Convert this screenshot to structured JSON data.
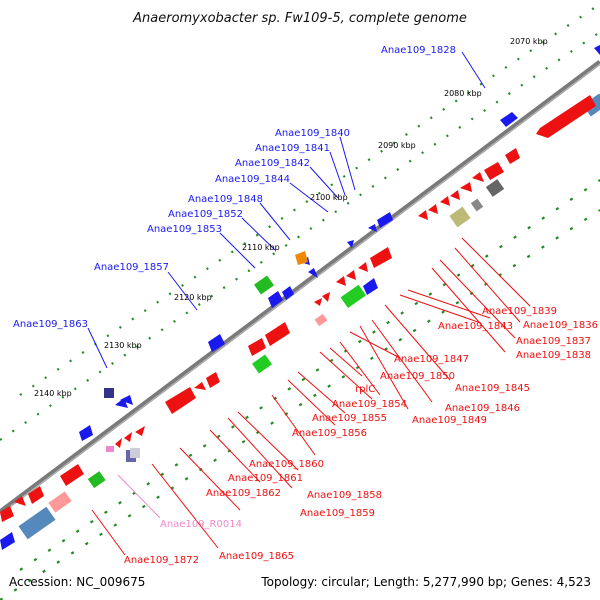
{
  "title": "Anaeromyxobacter sp. Fw109-5, complete genome",
  "accession": "Accession: NC_009675",
  "topology": "Topology: circular; Length: 5,277,990 bp; Genes: 4,523",
  "colors": {
    "forward": "#0000ee",
    "reverse": "#ee0000",
    "rna": "#ee88cc",
    "backbone": "#777777",
    "tick_dots": "#228b22"
  },
  "ticks": [
    "2070 kbp",
    "2080 kbp",
    "2090 kbp",
    "2100 kbp",
    "2110 kbp",
    "2120 kbp",
    "2130 kbp",
    "2140 kbp"
  ],
  "labels_forward": [
    "Anae109_1828",
    "Anae109_1840",
    "Anae109_1841",
    "Anae109_1842",
    "Anae109_1844",
    "Anae109_1848",
    "Anae109_1852",
    "Anae109_1853",
    "Anae109_1857",
    "Anae109_1863"
  ],
  "labels_reverse": [
    "Anae109_1839",
    "Anae109_1836",
    "Anae109_1843",
    "Anae109_1837",
    "Anae109_1838",
    "Anae109_1847",
    "Anae109_1845",
    "Anae109_1850",
    "rplC",
    "Anae109_1846",
    "Anae109_1854",
    "Anae109_1849",
    "Anae109_1855",
    "Anae109_1856",
    "Anae109_1860",
    "Anae109_1861",
    "Anae109_1858",
    "Anae109_1862",
    "Anae109_1859",
    "Anae109_1872",
    "Anae109_1865"
  ],
  "labels_rna": [
    "Anae109_R0014"
  ]
}
